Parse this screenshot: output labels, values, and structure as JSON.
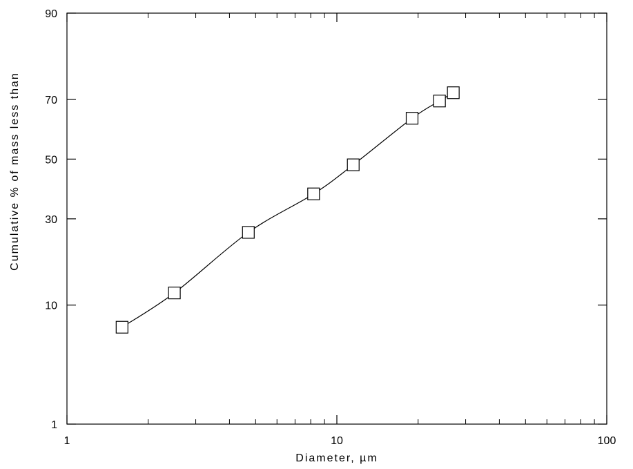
{
  "chart_data": {
    "type": "scatter",
    "title": "",
    "xlabel": "Diameter, µm",
    "ylabel": "Cumulative % of mass less than",
    "x_scale": "log",
    "y_scale": "probability",
    "xlim": [
      1,
      100
    ],
    "ylim": [
      1,
      90
    ],
    "x_ticks": [
      1,
      10,
      100
    ],
    "y_ticks": [
      1,
      10,
      30,
      50,
      70,
      90
    ],
    "grid": false,
    "legend": "none",
    "series": [
      {
        "x": [
          1.6,
          2.5,
          4.7,
          8.2,
          11.5,
          19,
          24,
          27
        ],
        "y": [
          7,
          12,
          26,
          38,
          48,
          64,
          69.5,
          72
        ],
        "marker": "square",
        "line": "smooth",
        "color": "#000000"
      }
    ]
  }
}
